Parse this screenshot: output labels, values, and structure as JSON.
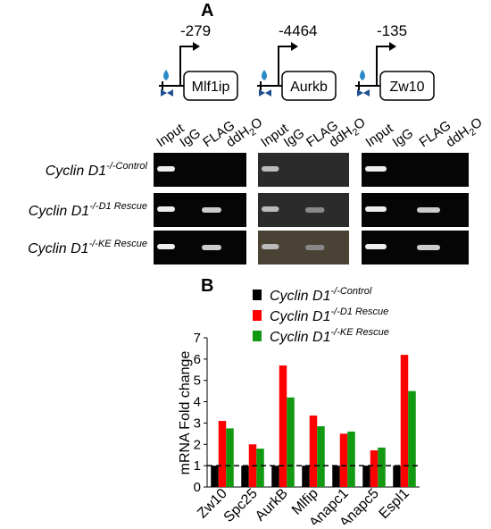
{
  "panel_a": {
    "label": "A",
    "promoters": [
      {
        "position": "-279",
        "gene": "Mlf1ip"
      },
      {
        "position": "-4464",
        "gene": "Aurkb"
      },
      {
        "position": "-135",
        "gene": "Zw10"
      }
    ],
    "lanes": [
      "Input",
      "IgG",
      "FLAG"
    ],
    "water": {
      "text": "ddH",
      "sub": "2",
      "after": "O"
    }
  },
  "chart_data": {
    "type": "bar",
    "label": "B",
    "ylabel": "mRNA Fold change",
    "categories": [
      "Zw10",
      "Spc25",
      "AurkB",
      "Mlfip",
      "Anapc1",
      "Anapc5",
      "Espl1"
    ],
    "series": [
      {
        "name": "Cyclin D1",
        "sup": "-/-Control",
        "color": "#000000",
        "values": [
          1,
          1,
          1,
          1,
          1,
          1,
          1
        ]
      },
      {
        "name": "Cyclin D1",
        "sup": "-/-D1 Rescue",
        "color": "#ff0000",
        "values": [
          3.1,
          2.0,
          5.7,
          3.35,
          2.5,
          1.72,
          6.2
        ]
      },
      {
        "name": "Cyclin D1",
        "sup": "-/-KE Rescue",
        "color": "#119911",
        "values": [
          2.75,
          1.8,
          4.2,
          2.85,
          2.6,
          1.85,
          4.5
        ]
      }
    ],
    "ylim": [
      0,
      7
    ],
    "yticks": [
      0,
      1,
      2,
      3,
      4,
      5,
      6,
      7
    ],
    "reference_line": 1
  }
}
